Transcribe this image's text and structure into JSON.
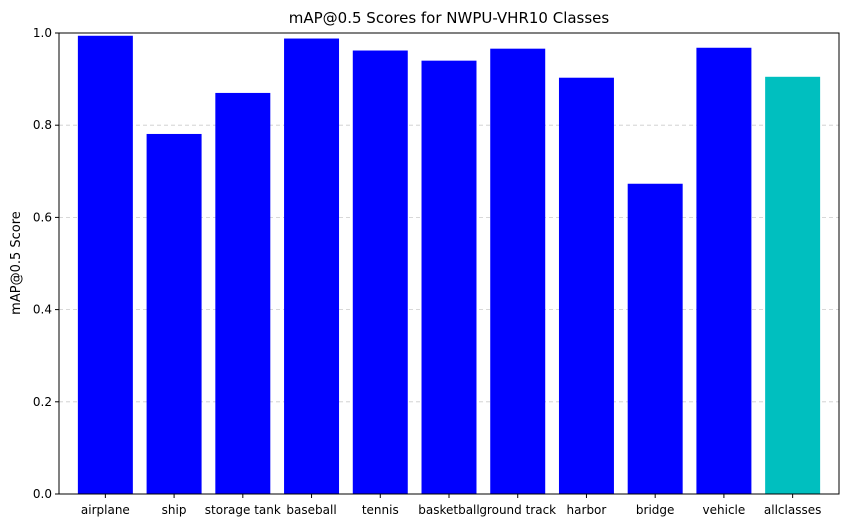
{
  "chart_data": {
    "type": "bar",
    "title": "mAP@0.5 Scores for NWPU-VHR10 Classes",
    "xlabel": "",
    "ylabel": "mAP@0.5 Score",
    "ylim": [
      0,
      1.0
    ],
    "yticks": [
      "0.0",
      "0.2",
      "0.4",
      "0.6",
      "0.8",
      "1.0"
    ],
    "grid": "y-dashed",
    "categories": [
      "airplane",
      "ship",
      "storage tank",
      "baseball",
      "tennis",
      "basketball",
      "ground track",
      "harbor",
      "bridge",
      "vehicle",
      "allclasses"
    ],
    "values": [
      0.994,
      0.781,
      0.87,
      0.988,
      0.962,
      0.94,
      0.966,
      0.903,
      0.673,
      0.968,
      0.905
    ],
    "colors": [
      "#0000ff",
      "#0000ff",
      "#0000ff",
      "#0000ff",
      "#0000ff",
      "#0000ff",
      "#0000ff",
      "#0000ff",
      "#0000ff",
      "#0000ff",
      "#00bfbf"
    ]
  }
}
